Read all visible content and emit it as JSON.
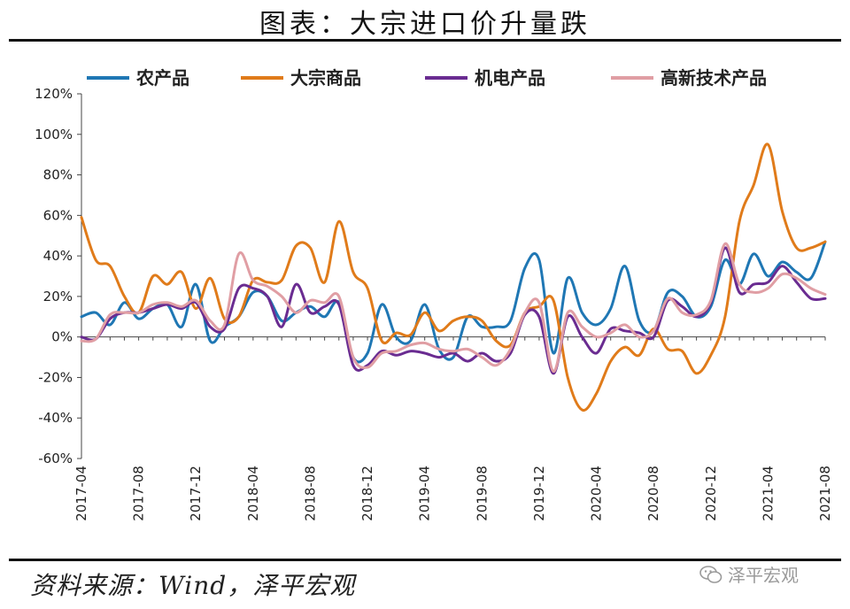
{
  "page": {
    "title": "图表：大宗进口价升量跌",
    "source": "资料来源：Wind，泽平宏观",
    "watermark": "泽平宏观"
  },
  "chart_data": {
    "type": "line",
    "title": "",
    "xlabel": "",
    "ylabel": "",
    "ylim": [
      -60,
      120
    ],
    "y_ticks": [
      "120%",
      "100%",
      "80%",
      "60%",
      "40%",
      "20%",
      "0%",
      "-20%",
      "-40%",
      "-60%"
    ],
    "y_tick_values": [
      120,
      100,
      80,
      60,
      40,
      20,
      0,
      -20,
      -40,
      -60
    ],
    "x": [
      "2017-04",
      "2017-05",
      "2017-06",
      "2017-07",
      "2017-08",
      "2017-09",
      "2017-10",
      "2017-11",
      "2017-12",
      "2018-01",
      "2018-02",
      "2018-03",
      "2018-04",
      "2018-05",
      "2018-06",
      "2018-07",
      "2018-08",
      "2018-09",
      "2018-10",
      "2018-11",
      "2018-12",
      "2019-01",
      "2019-02",
      "2019-03",
      "2019-04",
      "2019-05",
      "2019-06",
      "2019-07",
      "2019-08",
      "2019-09",
      "2019-10",
      "2019-11",
      "2019-12",
      "2020-01",
      "2020-02",
      "2020-03",
      "2020-04",
      "2020-05",
      "2020-06",
      "2020-07",
      "2020-08",
      "2020-09",
      "2020-10",
      "2020-11",
      "2020-12",
      "2021-01",
      "2021-02",
      "2021-03",
      "2021-04",
      "2021-05",
      "2021-06",
      "2021-07",
      "2021-08"
    ],
    "x_tick_labels": [
      "2017-04",
      "2017-08",
      "2017-12",
      "2018-04",
      "2018-08",
      "2018-12",
      "2019-04",
      "2019-08",
      "2019-12",
      "2020-04",
      "2020-08",
      "2020-12",
      "2021-04",
      "2021-08"
    ],
    "legend_position": "top",
    "grid": false,
    "series": [
      {
        "name": "农产品",
        "color": "#1f77b4",
        "values": [
          10,
          12,
          6,
          17,
          9,
          14,
          16,
          5,
          26,
          -2,
          5,
          10,
          22,
          20,
          8,
          12,
          15,
          10,
          17,
          -10,
          -8,
          16,
          0,
          -2,
          16,
          -6,
          -10,
          10,
          5,
          5,
          8,
          34,
          38,
          -8,
          29,
          12,
          6,
          14,
          35,
          8,
          3,
          22,
          20,
          10,
          15,
          38,
          26,
          41,
          30,
          37,
          32,
          29,
          47
        ]
      },
      {
        "name": "大宗商品",
        "color": "#e07b1a",
        "values": [
          59,
          38,
          35,
          20,
          12,
          30,
          26,
          32,
          14,
          29,
          9,
          10,
          28,
          27,
          28,
          45,
          44,
          27,
          57,
          32,
          24,
          -2,
          2,
          1,
          12,
          3,
          8,
          10,
          8,
          -2,
          -4,
          12,
          15,
          18,
          -20,
          -36,
          -28,
          -12,
          -5,
          -9,
          4,
          -6,
          -7,
          -18,
          -9,
          10,
          57,
          75,
          95,
          62,
          44,
          44,
          47
        ]
      },
      {
        "name": "机电产品",
        "color": "#6a2c91",
        "values": [
          0,
          -1,
          9,
          12,
          12,
          14,
          16,
          14,
          17,
          5,
          4,
          24,
          24,
          20,
          5,
          26,
          12,
          15,
          16,
          -14,
          -14,
          -7,
          -9,
          -7,
          -8,
          -10,
          -8,
          -12,
          -8,
          -12,
          -8,
          11,
          10,
          -18,
          10,
          0,
          -8,
          4,
          3,
          2,
          0,
          18,
          15,
          10,
          17,
          44,
          22,
          26,
          27,
          35,
          27,
          19,
          19
        ]
      },
      {
        "name": "高新技术产品",
        "color": "#e09ea4",
        "values": [
          -2,
          -1,
          11,
          12,
          12,
          16,
          17,
          15,
          18,
          8,
          6,
          41,
          28,
          25,
          20,
          12,
          18,
          17,
          20,
          -10,
          -15,
          -8,
          -7,
          -4,
          -3,
          -6,
          -7,
          -6,
          -10,
          -14,
          -6,
          12,
          17,
          -17,
          12,
          5,
          0,
          2,
          6,
          0,
          3,
          19,
          12,
          11,
          18,
          46,
          26,
          22,
          24,
          31,
          29,
          24,
          21
        ]
      }
    ]
  }
}
